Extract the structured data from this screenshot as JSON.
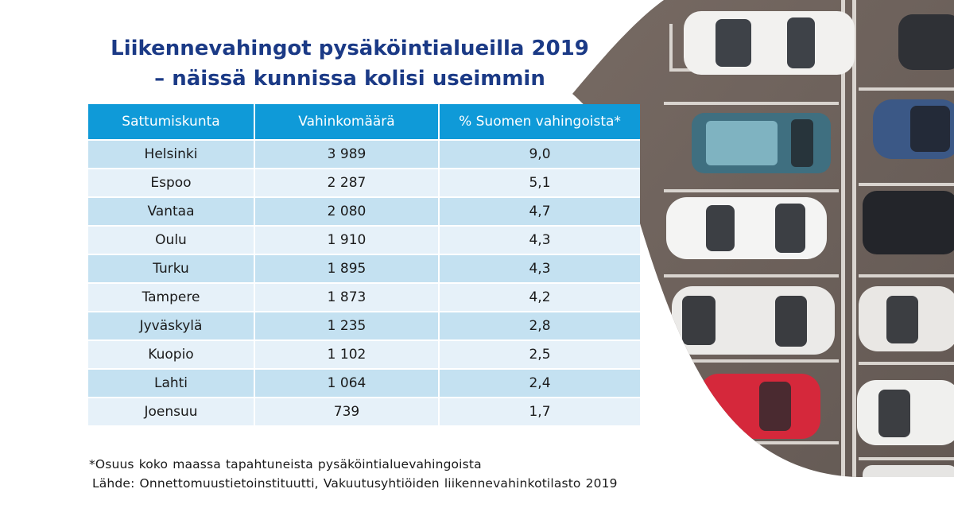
{
  "title": {
    "line1": "Liikennevahingot pysäköintialueilla 2019",
    "line2": "– näissä kunnissa kolisi useimmin"
  },
  "table": {
    "headers": [
      "Sattumiskunta",
      "Vahinkomäärä",
      "% Suomen vahingoista*"
    ],
    "rows": [
      [
        "Helsinki",
        "3 989",
        "9,0"
      ],
      [
        "Espoo",
        "2 287",
        "5,1"
      ],
      [
        "Vantaa",
        "2 080",
        "4,7"
      ],
      [
        "Oulu",
        "1 910",
        "4,3"
      ],
      [
        "Turku",
        "1 895",
        "4,3"
      ],
      [
        "Tampere",
        "1 873",
        "4,2"
      ],
      [
        "Jyväskylä",
        "1 235",
        "2,8"
      ],
      [
        "Kuopio",
        "1 102",
        "2,5"
      ],
      [
        "Lahti",
        "1 064",
        "2,4"
      ],
      [
        "Joensuu",
        "739",
        "1,7"
      ]
    ]
  },
  "footnote": "*Osuus koko maassa tapahtuneista pysäköintialuevahingoista",
  "source": "Lähde: Onnettomuustietoinstituutti, Vakuutusyhtiöiden liikennevahinkotilasto 2019",
  "colors": {
    "title": "#1b3a86",
    "header_bg": "#0f9ad8",
    "row_dark": "#c4e1f1",
    "row_light": "#e6f1f9",
    "asphalt": "#6e625c"
  },
  "photo_description_icon": "parking-lot-photo"
}
